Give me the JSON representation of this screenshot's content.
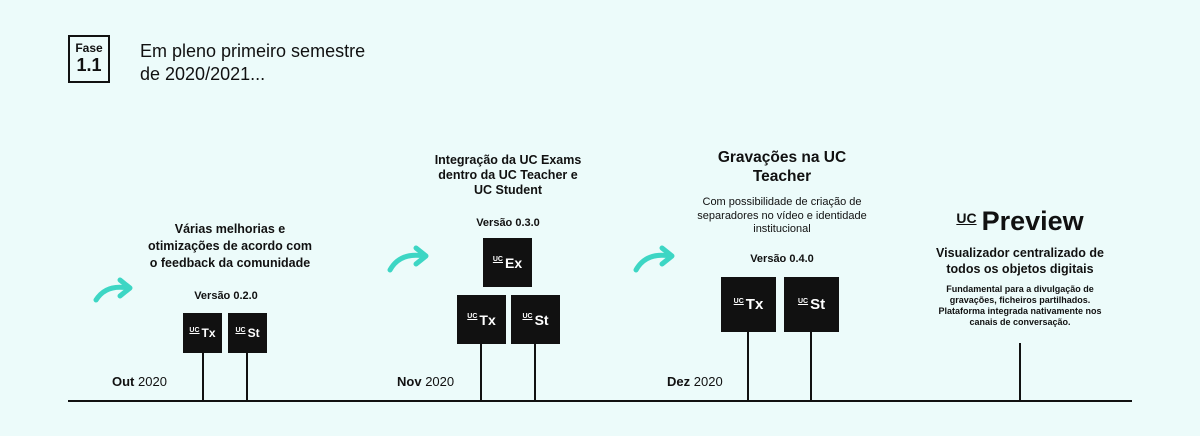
{
  "phase": {
    "label": "Fase",
    "number": "1.1"
  },
  "heading": [
    "Em pleno primeiro semestre",
    "de 2020/2021..."
  ],
  "milestones": [
    {
      "month": "Out",
      "year": "2020",
      "title": [
        "Várias melhorias e",
        "otimizações de acordo com",
        "o feedback da comunidade"
      ],
      "version": "Versão 0.2.0",
      "boxes": [
        {
          "prefix": "UC",
          "code": "Tx"
        },
        {
          "prefix": "UC",
          "code": "St"
        }
      ]
    },
    {
      "month": "Nov",
      "year": "2020",
      "title": [
        "Integração da UC Exams",
        "dentro da UC Teacher e",
        "UC Student"
      ],
      "version": "Versão 0.3.0",
      "boxes": [
        {
          "prefix": "UC",
          "code": "Ex"
        },
        {
          "prefix": "UC",
          "code": "Tx"
        },
        {
          "prefix": "UC",
          "code": "St"
        }
      ]
    },
    {
      "month": "Dez",
      "year": "2020",
      "title": [
        "Gravações na UC",
        "Teacher"
      ],
      "description": [
        "Com possibilidade de criação de",
        "separadores no vídeo e identidade",
        "institucional"
      ],
      "version": "Versão 0.4.0",
      "boxes": [
        {
          "prefix": "UC",
          "code": "Tx"
        },
        {
          "prefix": "UC",
          "code": "St"
        }
      ]
    }
  ],
  "preview": {
    "prefix": "UC",
    "name": "Preview",
    "subtitle": [
      "Visualizador centralizado de",
      "todos os objetos digitais"
    ],
    "description": [
      "Fundamental para a divulgação de",
      "gravações, ficheiros partilhados.",
      "Plataforma integrada nativamente nos",
      "canais de conversação."
    ]
  }
}
